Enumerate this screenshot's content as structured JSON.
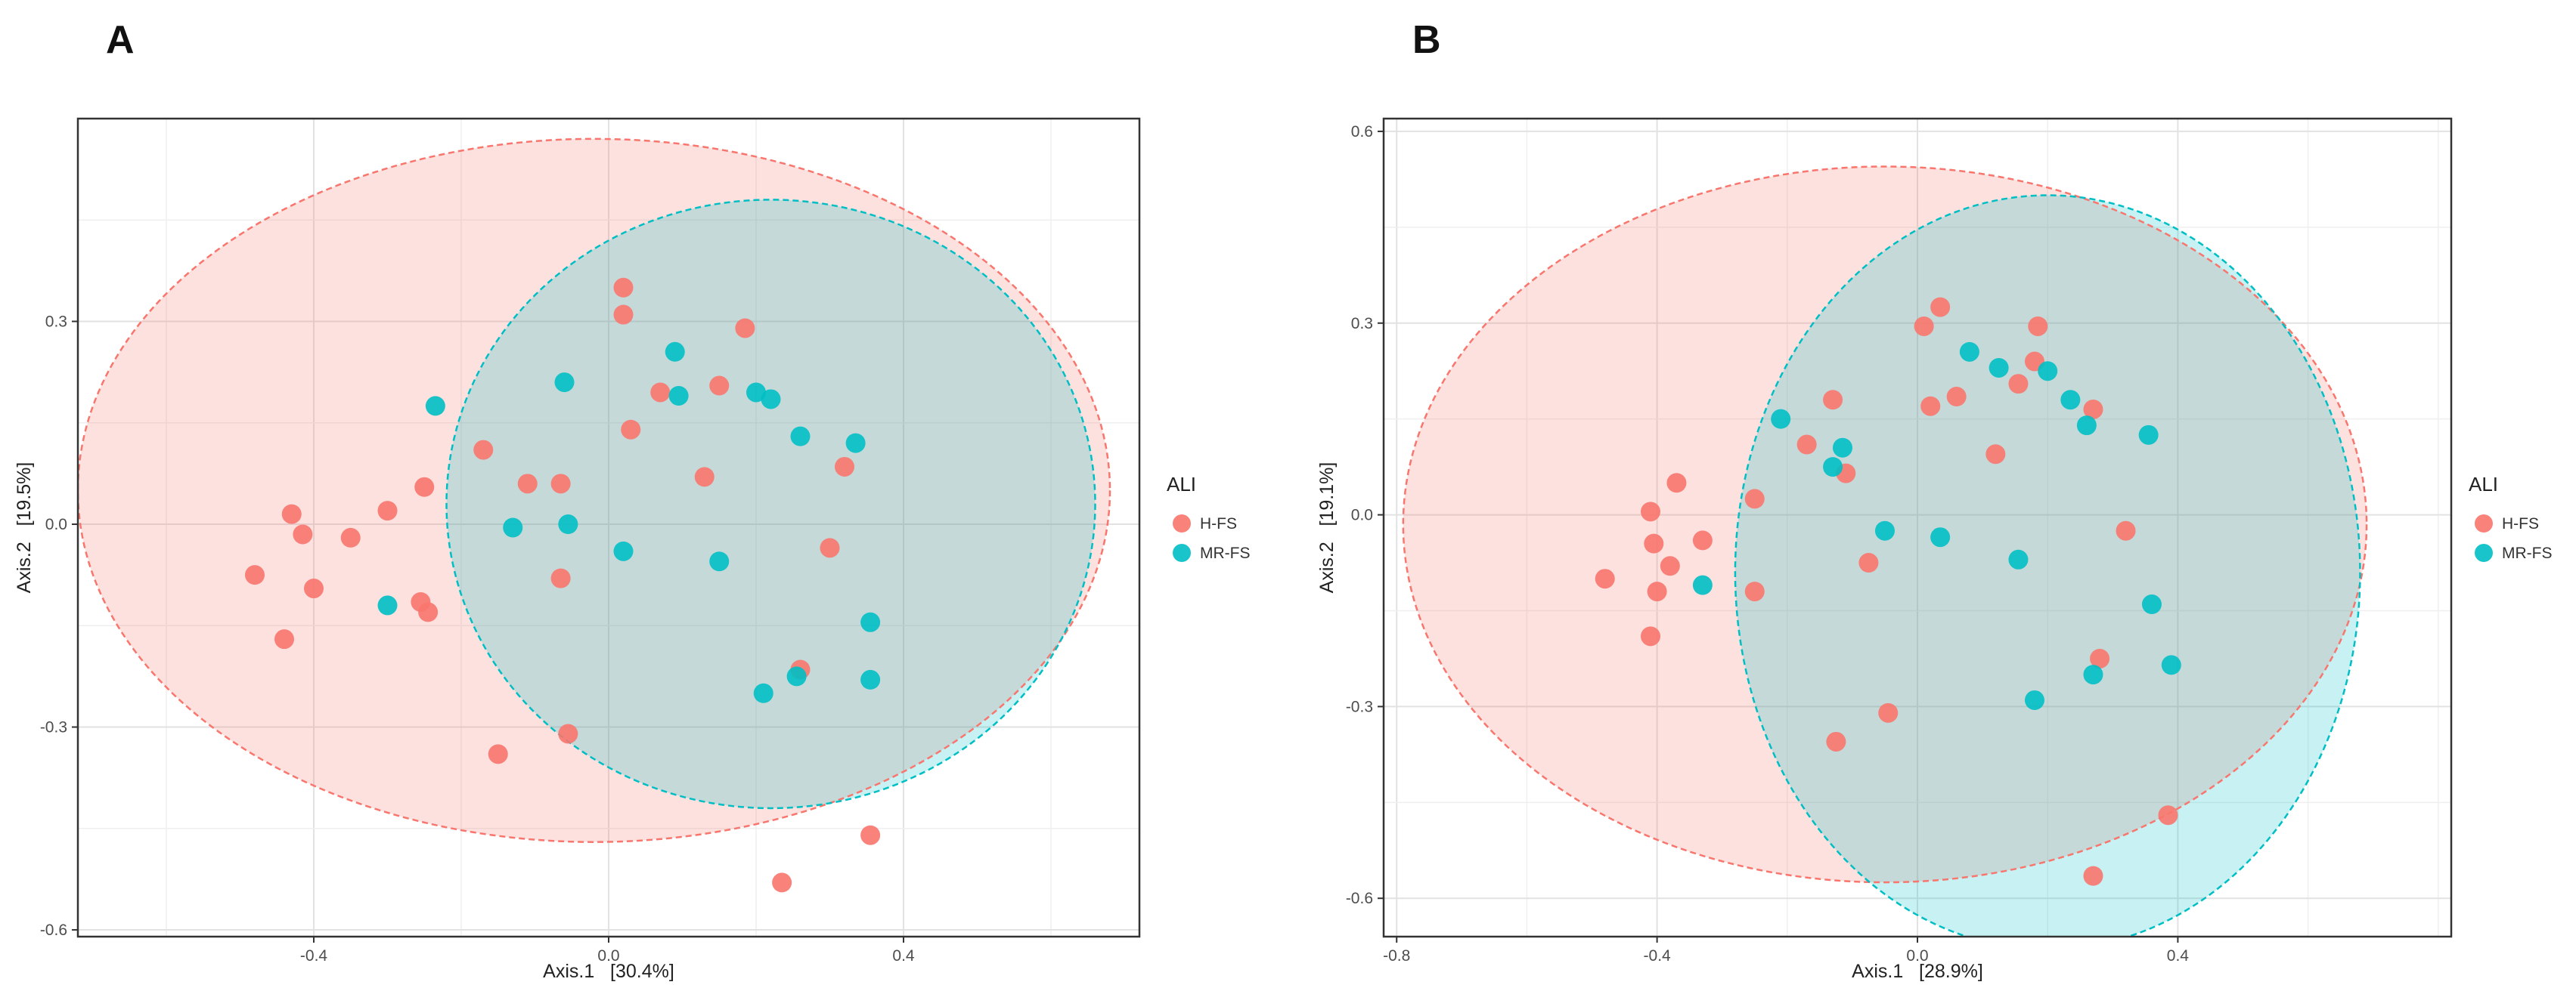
{
  "chart_data": [
    {
      "type": "scatter",
      "panel": "A",
      "title": "",
      "xlabel": "Axis.1   [30.4%]",
      "ylabel": "Axis.2   [19.5%]",
      "xlim": [
        -0.72,
        0.72
      ],
      "ylim": [
        -0.61,
        0.6
      ],
      "xticks": [
        -0.4,
        0.0,
        0.4
      ],
      "yticks": [
        -0.6,
        -0.3,
        0.0,
        0.3
      ],
      "tick_labels_x": [
        "-0.4",
        "0.0",
        "0.4"
      ],
      "tick_labels_y": [
        "-0.6",
        "-0.3",
        "0.0",
        "0.3"
      ],
      "grid": true,
      "legend": {
        "title": "ALI",
        "position": "right",
        "entries": [
          "H-FS",
          "MR-FS"
        ]
      },
      "series": [
        {
          "name": "H-FS",
          "color": "#F8766D",
          "ellipse": {
            "cx": -0.02,
            "cy": 0.05,
            "rx": 0.7,
            "ry": 0.52,
            "angle_deg": 0
          },
          "points": [
            [
              -0.48,
              -0.075
            ],
            [
              -0.44,
              -0.17
            ],
            [
              -0.4,
              -0.095
            ],
            [
              -0.43,
              0.015
            ],
            [
              -0.415,
              -0.015
            ],
            [
              -0.35,
              -0.02
            ],
            [
              -0.3,
              0.02
            ],
            [
              -0.25,
              0.055
            ],
            [
              -0.255,
              -0.115
            ],
            [
              -0.245,
              -0.13
            ],
            [
              -0.17,
              0.11
            ],
            [
              -0.11,
              0.06
            ],
            [
              -0.065,
              0.06
            ],
            [
              -0.065,
              -0.08
            ],
            [
              -0.055,
              -0.31
            ],
            [
              -0.15,
              -0.34
            ],
            [
              0.02,
              0.35
            ],
            [
              0.02,
              0.31
            ],
            [
              0.03,
              0.14
            ],
            [
              0.07,
              0.195
            ],
            [
              0.13,
              0.07
            ],
            [
              0.15,
              0.205
            ],
            [
              0.185,
              0.29
            ],
            [
              0.26,
              -0.215
            ],
            [
              0.3,
              -0.035
            ],
            [
              0.32,
              0.085
            ],
            [
              0.355,
              -0.46
            ],
            [
              0.235,
              -0.53
            ]
          ]
        },
        {
          "name": "MR-FS",
          "color": "#00BFC4",
          "ellipse": {
            "cx": 0.22,
            "cy": 0.03,
            "rx": 0.44,
            "ry": 0.45,
            "angle_deg": 0
          },
          "points": [
            [
              -0.235,
              0.175
            ],
            [
              -0.3,
              -0.12
            ],
            [
              -0.13,
              -0.005
            ],
            [
              -0.06,
              0.21
            ],
            [
              -0.055,
              0.0
            ],
            [
              0.02,
              -0.04
            ],
            [
              0.09,
              0.255
            ],
            [
              0.095,
              0.19
            ],
            [
              0.15,
              -0.055
            ],
            [
              0.2,
              0.195
            ],
            [
              0.22,
              0.185
            ],
            [
              0.26,
              0.13
            ],
            [
              0.335,
              0.12
            ],
            [
              0.21,
              -0.25
            ],
            [
              0.255,
              -0.225
            ],
            [
              0.355,
              -0.145
            ],
            [
              0.355,
              -0.23
            ]
          ]
        }
      ]
    },
    {
      "type": "scatter",
      "panel": "B",
      "title": "",
      "xlabel": "Axis.1   [28.9%]",
      "ylabel": "Axis.2   [19.1%]",
      "xlim": [
        -0.82,
        0.82
      ],
      "ylim": [
        -0.66,
        0.62
      ],
      "xticks": [
        -0.8,
        -0.4,
        0.0,
        0.4
      ],
      "yticks": [
        -0.6,
        -0.3,
        0.0,
        0.3,
        0.6
      ],
      "tick_labels_x": [
        "-0.8",
        "-0.4",
        "0.0",
        "0.4"
      ],
      "tick_labels_y": [
        "-0.6",
        "-0.3",
        "0.0",
        "0.3",
        "0.6"
      ],
      "grid": true,
      "legend": {
        "title": "ALI",
        "position": "right",
        "entries": [
          "H-FS",
          "MR-FS"
        ]
      },
      "series": [
        {
          "name": "H-FS",
          "color": "#F8766D",
          "ellipse": {
            "cx": -0.05,
            "cy": -0.015,
            "rx": 0.74,
            "ry": 0.56,
            "angle_deg": 0
          },
          "points": [
            [
              -0.48,
              -0.1
            ],
            [
              -0.41,
              -0.19
            ],
            [
              -0.41,
              0.005
            ],
            [
              -0.405,
              -0.045
            ],
            [
              -0.4,
              -0.12
            ],
            [
              -0.38,
              -0.08
            ],
            [
              -0.37,
              0.05
            ],
            [
              -0.33,
              -0.04
            ],
            [
              -0.25,
              0.025
            ],
            [
              -0.25,
              -0.12
            ],
            [
              -0.17,
              0.11
            ],
            [
              -0.13,
              0.18
            ],
            [
              -0.11,
              0.065
            ],
            [
              -0.075,
              -0.075
            ],
            [
              -0.045,
              -0.31
            ],
            [
              -0.125,
              -0.355
            ],
            [
              0.01,
              0.295
            ],
            [
              0.035,
              0.325
            ],
            [
              0.02,
              0.17
            ],
            [
              0.06,
              0.185
            ],
            [
              0.12,
              0.095
            ],
            [
              0.155,
              0.205
            ],
            [
              0.18,
              0.24
            ],
            [
              0.185,
              0.295
            ],
            [
              0.27,
              0.165
            ],
            [
              0.32,
              -0.025
            ],
            [
              0.28,
              -0.225
            ],
            [
              0.385,
              -0.47
            ],
            [
              0.27,
              -0.565
            ]
          ]
        },
        {
          "name": "MR-FS",
          "color": "#00BFC4",
          "ellipse": {
            "cx": 0.2,
            "cy": -0.09,
            "rx": 0.48,
            "ry": 0.59,
            "angle_deg": 0
          },
          "points": [
            [
              -0.21,
              0.15
            ],
            [
              -0.13,
              0.075
            ],
            [
              -0.115,
              0.105
            ],
            [
              -0.33,
              -0.11
            ],
            [
              -0.05,
              -0.025
            ],
            [
              0.035,
              -0.035
            ],
            [
              0.08,
              0.255
            ],
            [
              0.125,
              0.23
            ],
            [
              0.2,
              0.225
            ],
            [
              0.235,
              0.18
            ],
            [
              0.26,
              0.14
            ],
            [
              0.355,
              0.125
            ],
            [
              0.155,
              -0.07
            ],
            [
              0.36,
              -0.14
            ],
            [
              0.18,
              -0.29
            ],
            [
              0.27,
              -0.25
            ],
            [
              0.39,
              -0.235
            ]
          ]
        }
      ]
    }
  ]
}
